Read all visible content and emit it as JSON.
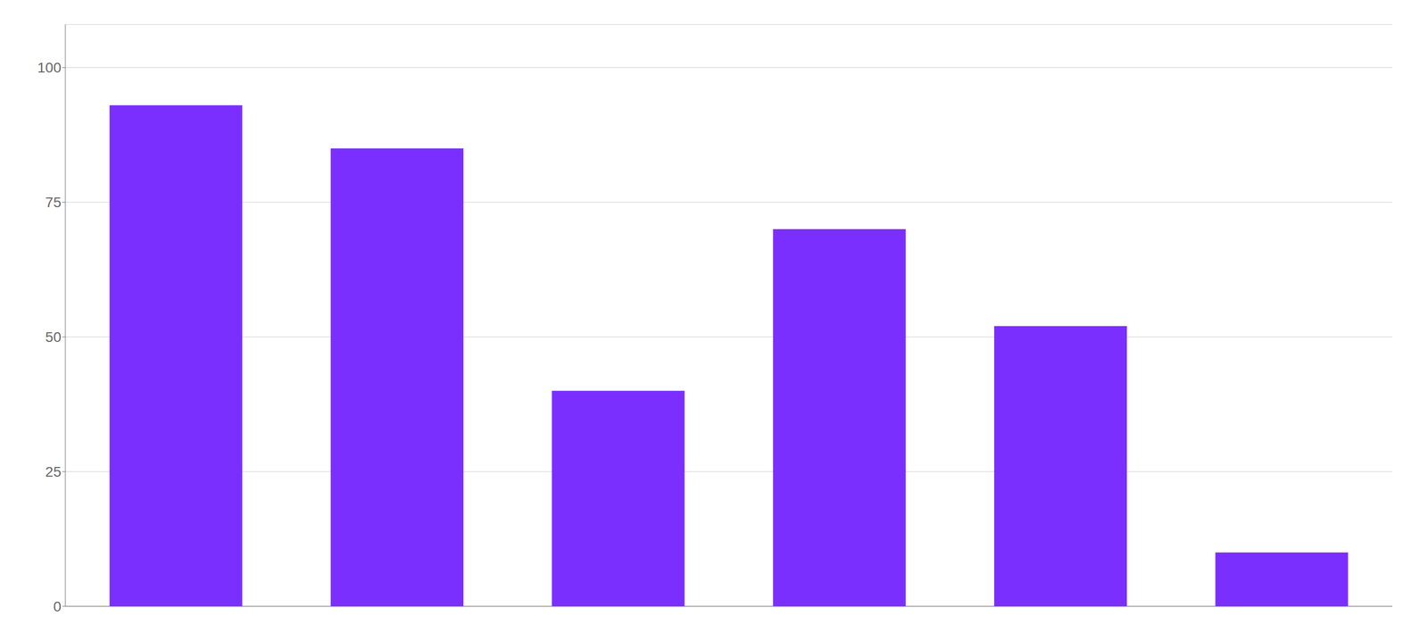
{
  "chart_data": {
    "type": "bar",
    "categories": [
      null,
      null,
      null,
      null,
      null,
      null
    ],
    "values": [
      93,
      85,
      40,
      70,
      52,
      10
    ],
    "color": "#7B2FFF",
    "ylim": [
      0,
      108
    ],
    "yticks": [
      0,
      25,
      50,
      75,
      100
    ],
    "grid": true,
    "tick_labels": "y"
  }
}
